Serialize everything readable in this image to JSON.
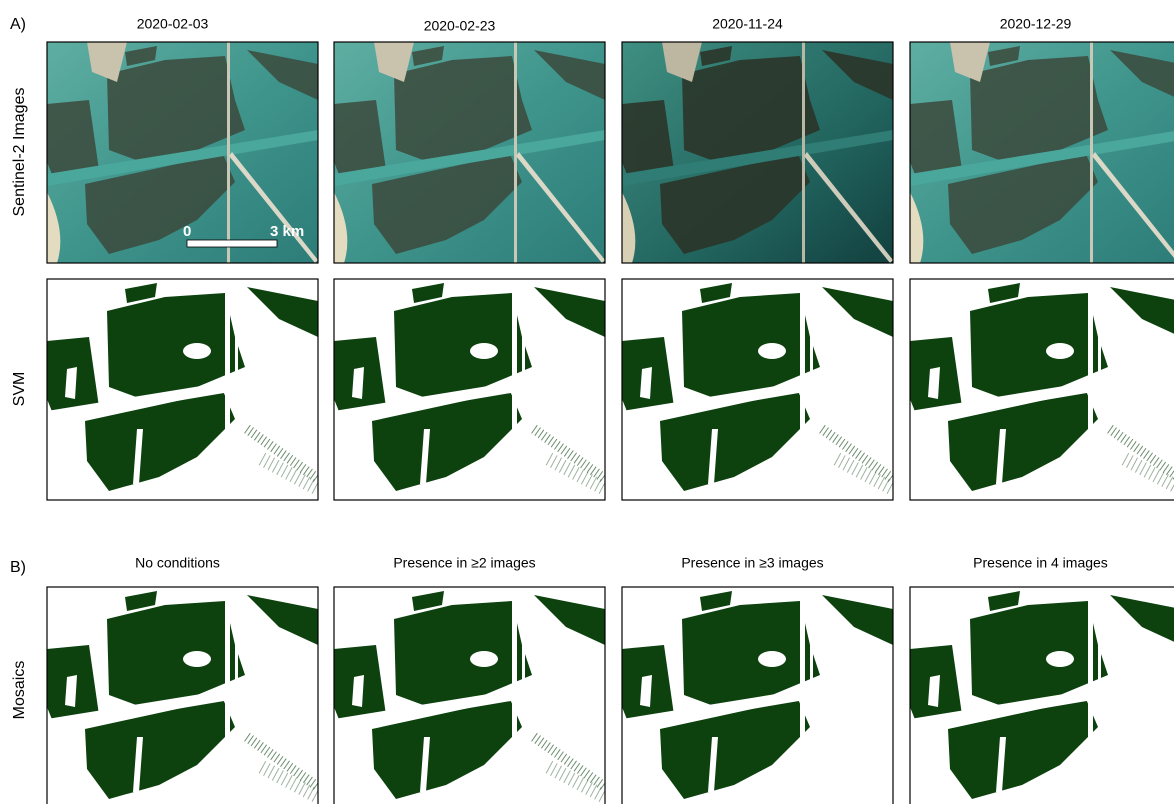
{
  "panel_a": {
    "label": "A)",
    "dates": [
      "2020-02-03",
      "2020-02-23",
      "2020-11-24",
      "2020-12-29"
    ],
    "row_labels": [
      "Sentinel-2 Images",
      "SVM"
    ],
    "scale_bar": {
      "start": "0",
      "end": "3 km"
    }
  },
  "panel_b": {
    "label": "B)",
    "titles": [
      "No conditions",
      "Presence in ≥2 images",
      "Presence in ≥3 images",
      "Presence in 4 images"
    ],
    "row_label": "Mosaics"
  }
}
